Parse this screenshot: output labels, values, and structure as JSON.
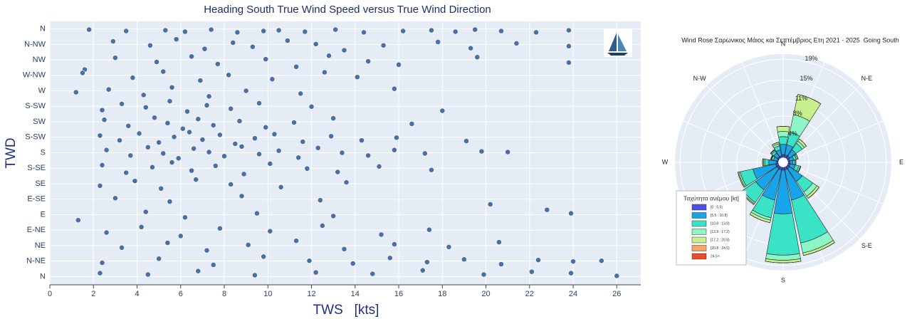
{
  "chart_data": [
    {
      "type": "scatter",
      "title": "Heading South True Wind Speed  versus True Wind Direction",
      "x_label": "TWS   [kts]",
      "y_label": "TWD",
      "xlim": [
        0,
        27.1
      ],
      "ylim": [
        -12,
        371
      ],
      "xticks": [
        0,
        2,
        4,
        6,
        8,
        10,
        12,
        14,
        16,
        18,
        20,
        22,
        24,
        26
      ],
      "yticks": [
        {
          "value": 0,
          "label": "N"
        },
        {
          "value": 22.5,
          "label": "N-NE"
        },
        {
          "value": 45,
          "label": "NE"
        },
        {
          "value": 67.5,
          "label": "E-NE"
        },
        {
          "value": 90,
          "label": "E"
        },
        {
          "value": 112.5,
          "label": "E-SE"
        },
        {
          "value": 135,
          "label": "SE"
        },
        {
          "value": 157.5,
          "label": "S-SE"
        },
        {
          "value": 180,
          "label": "S"
        },
        {
          "value": 202.5,
          "label": "S-SW"
        },
        {
          "value": 225,
          "label": "SW"
        },
        {
          "value": 247.5,
          "label": "S-SW"
        },
        {
          "value": 270,
          "label": "W"
        },
        {
          "value": 292.5,
          "label": "W-NW"
        },
        {
          "value": 315,
          "label": "NW"
        },
        {
          "value": 337.5,
          "label": "N-NW"
        },
        {
          "value": 360,
          "label": "N"
        }
      ],
      "grid": true,
      "color": "#4a6fa5",
      "x": [
        1.8,
        3.5,
        5.3,
        6.2,
        7.4,
        8.6,
        9.8,
        10.5,
        11.7,
        13.1,
        14.4,
        16.2,
        17.5,
        18.6,
        19.5,
        20.7,
        22.3,
        23.8,
        2.9,
        4.6,
        5.8,
        7.1,
        8.4,
        9.3,
        10.9,
        12.2,
        13.5,
        15.3,
        17.8,
        19.3,
        21.4,
        23.8,
        1.6,
        3.0,
        4.9,
        6.5,
        7.7,
        9.9,
        11.3,
        12.8,
        14.6,
        16.0,
        19.6,
        23.8,
        1.5,
        3.8,
        5.2,
        6.9,
        8.2,
        10.2,
        12.6,
        14.1,
        1.2,
        2.7,
        4.3,
        5.6,
        7.3,
        9.0,
        11.5,
        15.8,
        2.4,
        3.3,
        4.4,
        5.5,
        6.3,
        7.2,
        8.3,
        9.6,
        12.0,
        18.0,
        2.5,
        3.6,
        4.8,
        5.4,
        6.1,
        6.8,
        7.5,
        8.7,
        9.9,
        11.2,
        13.0,
        16.6,
        2.3,
        3.2,
        4.1,
        5.0,
        5.7,
        6.4,
        7.0,
        7.8,
        8.5,
        9.4,
        10.3,
        11.6,
        12.9,
        14.3,
        15.9,
        19.1,
        2.6,
        3.7,
        4.5,
        5.2,
        5.9,
        6.6,
        7.3,
        8.0,
        8.8,
        9.6,
        10.5,
        11.4,
        12.3,
        13.4,
        14.6,
        15.8,
        17.2,
        19.8,
        21.0,
        2.4,
        3.5,
        4.7,
        5.6,
        6.5,
        7.6,
        8.9,
        10.1,
        11.8,
        13.2,
        15.1,
        17.5,
        2.3,
        3.9,
        5.1,
        6.7,
        8.3,
        10.6,
        13.6,
        3.0,
        5.5,
        8.8,
        12.4,
        1.3,
        4.4,
        6.2,
        9.5,
        13.0,
        20.2,
        22.8,
        23.9,
        2.6,
        4.2,
        6.0,
        7.8,
        10.1,
        12.5,
        15.2,
        17.4,
        3.3,
        5.4,
        7.2,
        9.1,
        11.3,
        13.5,
        15.8,
        18.3,
        20.6,
        2.4,
        5.0,
        7.5,
        9.8,
        11.9,
        13.9,
        15.6,
        17.3,
        19.0,
        20.7,
        22.4,
        24.0,
        25.3,
        2.3,
        4.5,
        6.8,
        9.4,
        12.2,
        14.8,
        17.1,
        19.9,
        22.1,
        23.9,
        26.0
      ],
      "values": [
        359,
        357,
        358,
        356,
        359,
        355,
        357,
        358,
        356,
        359,
        355,
        357,
        358,
        356,
        359,
        357,
        355,
        358,
        342,
        336,
        345,
        331,
        340,
        334,
        343,
        338,
        329,
        336,
        341,
        332,
        339,
        335,
        301,
        318,
        312,
        320,
        309,
        316,
        305,
        321,
        313,
        308,
        319,
        311,
        296,
        289,
        298,
        285,
        293,
        287,
        297,
        290,
        268,
        272,
        264,
        275,
        262,
        270,
        266,
        273,
        242,
        251,
        246,
        255,
        240,
        249,
        244,
        252,
        247,
        241,
        228,
        219,
        231,
        223,
        215,
        229,
        220,
        226,
        217,
        224,
        230,
        222,
        205,
        198,
        208,
        195,
        203,
        210,
        199,
        206,
        193,
        201,
        207,
        196,
        204,
        198,
        202,
        197,
        184,
        176,
        188,
        179,
        172,
        186,
        181,
        175,
        189,
        178,
        183,
        173,
        187,
        180,
        176,
        184,
        179,
        182,
        181,
        162,
        151,
        159,
        166,
        154,
        161,
        149,
        164,
        157,
        152,
        160,
        155,
        132,
        139,
        128,
        141,
        134,
        130,
        137,
        114,
        109,
        117,
        111,
        82,
        94,
        86,
        92,
        88,
        105,
        97,
        92,
        64,
        72,
        59,
        70,
        66,
        74,
        61,
        68,
        42,
        49,
        38,
        46,
        52,
        40,
        47,
        43,
        50,
        20,
        26,
        17,
        29,
        23,
        19,
        27,
        21,
        25,
        18,
        24,
        22,
        23,
        5,
        3,
        8,
        2,
        6,
        4,
        9,
        3,
        7,
        5,
        1
      ]
    },
    {
      "type": "barpolar",
      "title": "Wind Rose Σαρωνικος Μάιος και Σεπτέμβριος Ετη 2021 - 2025  Going South",
      "legend_title": "Ταχύτητα ανέμου [kt]",
      "categories": [
        "N",
        null,
        "N-E",
        null,
        "E",
        null,
        "S-E",
        null,
        "S",
        null,
        null,
        null,
        "W",
        null,
        "N-W",
        null
      ],
      "rlim": [
        -1,
        20
      ],
      "rticks": [
        {
          "value": 4,
          "label": "4%"
        },
        {
          "value": 8,
          "label": "8%"
        },
        {
          "value": 11,
          "label": "11%"
        },
        {
          "value": 15,
          "label": "15%"
        },
        {
          "value": 19,
          "label": "19%"
        }
      ],
      "series": [
        {
          "name": "[0 : 5.5)",
          "color": "#4a4fe6",
          "values": [
            0.5,
            0.5,
            0.5,
            0.3,
            0.3,
            0.4,
            0.5,
            0.5,
            0.5,
            0.5,
            0.5,
            0.5,
            0.3,
            0.2,
            0.3,
            0.3
          ]
        },
        {
          "name": "[5.5 : 10.8)",
          "color": "#18a4e8",
          "values": [
            2,
            2,
            1.5,
            0.8,
            0.6,
            1,
            3,
            6,
            8.5,
            6,
            5,
            4.5,
            1.5,
            0.7,
            0.9,
            1.2
          ]
        },
        {
          "name": "[10.8 : 13.9)",
          "color": "#3ae2c6",
          "values": [
            1.5,
            2.5,
            1.5,
            0.5,
            0.4,
            0.7,
            2.5,
            8.5,
            8,
            3.5,
            3,
            2.5,
            0.8,
            0.4,
            0.5,
            0.8
          ]
        },
        {
          "name": "[13.9 : 17.2)",
          "color": "#8ef5c6",
          "values": [
            1,
            3.5,
            0.5,
            0.2,
            0.2,
            0.3,
            1,
            2,
            1,
            0.5,
            0.3,
            0.3,
            0.2,
            0.1,
            0.2,
            0.4
          ]
        },
        {
          "name": "[17.2 : 20.8)",
          "color": "#c6f08e",
          "values": [
            1,
            4,
            0.5,
            0.2,
            0,
            0.1,
            0.5,
            0.5,
            0.5,
            0.5,
            0.2,
            0.2,
            0.2,
            0.1,
            0.1,
            0.3
          ]
        },
        {
          "name": "[20.8 : 24.5)",
          "color": "#f4a566",
          "values": [
            0,
            0,
            0,
            0,
            0,
            0,
            0,
            0,
            0,
            0,
            0,
            0,
            0,
            0,
            0,
            0
          ]
        },
        {
          "name": "24.5+",
          "color": "#ec4a2a",
          "values": [
            0,
            0,
            0,
            0,
            0,
            0,
            0,
            0,
            0,
            0,
            0,
            0,
            0,
            0,
            0,
            0
          ]
        }
      ]
    }
  ]
}
